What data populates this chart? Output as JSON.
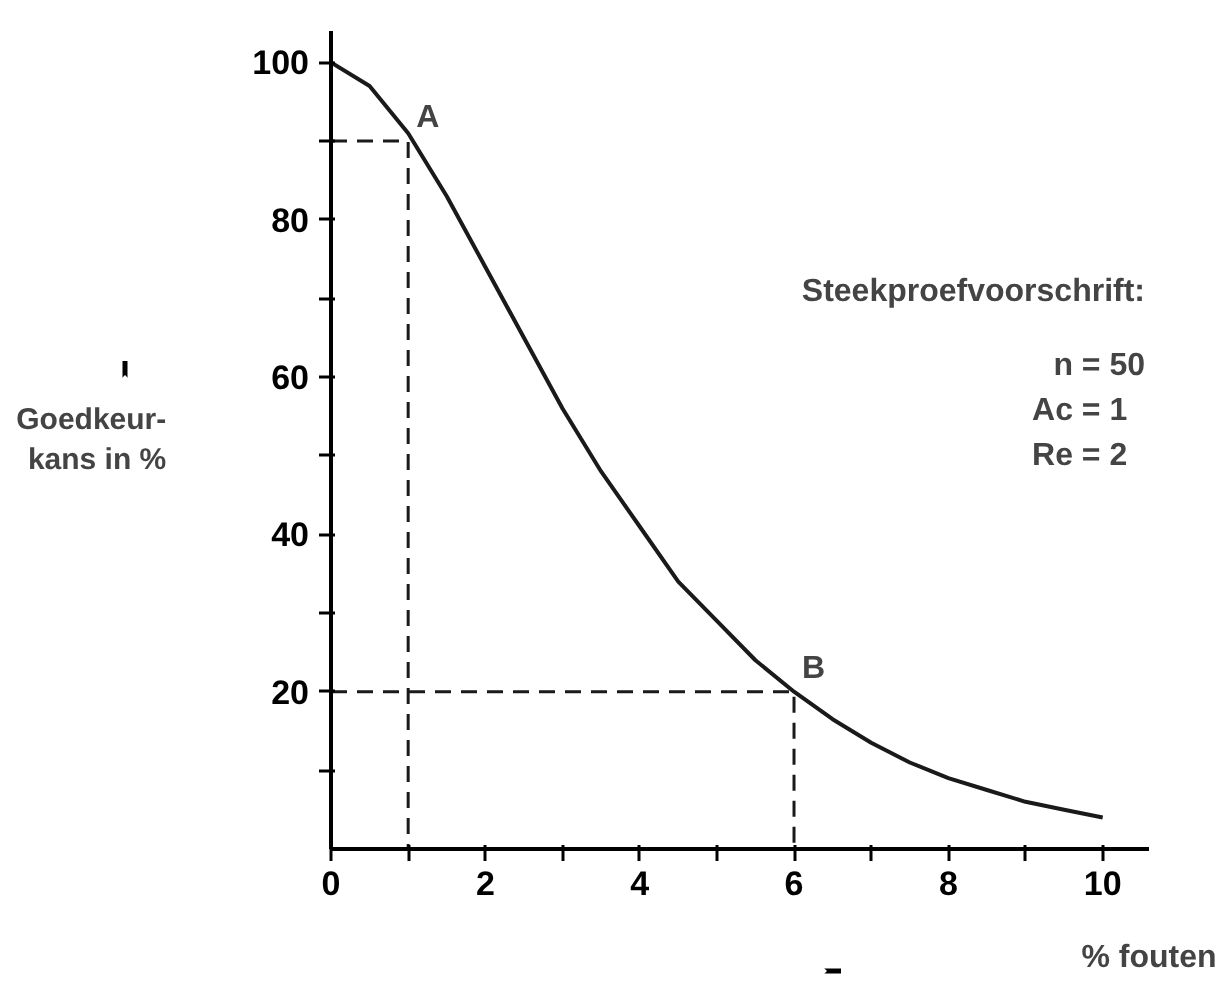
{
  "chart_data": {
    "type": "line",
    "xlabel": "% fouten",
    "ylabel": "Goedkeur-\nkans in %",
    "series": [
      {
        "color": "#1a1a1a",
        "x": [
          0,
          0.5,
          1,
          1.5,
          2,
          2.5,
          3,
          3.5,
          4,
          4.5,
          5,
          5.5,
          6,
          6.5,
          7,
          7.5,
          8,
          8.5,
          9,
          9.5,
          10
        ],
        "values": [
          100,
          97,
          91,
          83,
          74,
          65,
          56,
          48,
          41,
          34,
          29,
          24,
          20,
          16.5,
          13.5,
          11,
          9,
          7.5,
          6,
          5,
          4
        ]
      },
      {
        "color": "#1a1a1a",
        "line_style": "dashed",
        "x": [
          0,
          1,
          1
        ],
        "values": [
          90,
          90,
          0
        ]
      },
      {
        "color": "#1a1a1a",
        "line_style": "dashed",
        "x": [
          0,
          6,
          6
        ],
        "values": [
          20,
          20,
          0
        ]
      }
    ],
    "annotations": [
      {
        "text": "A",
        "x": 1,
        "y": 90
      },
      {
        "text": "B",
        "x": 6,
        "y": 20
      },
      "Steekproefvoorschrift:",
      "n = 50",
      "Ac =   1",
      "Re =   2"
    ],
    "xlim": [
      0,
      10.6
    ],
    "ylim": [
      0,
      104
    ],
    "xticks": [
      0,
      {
        "value": 1,
        "label": null
      },
      2,
      {
        "value": 3,
        "label": null
      },
      4,
      {
        "value": 5,
        "label": null
      },
      6,
      {
        "value": 7,
        "label": null
      },
      8,
      {
        "value": 9,
        "label": null
      },
      10
    ],
    "yticks": [
      {
        "value": 10,
        "label": null
      },
      20,
      {
        "value": 30,
        "label": null
      },
      40,
      {
        "value": 50,
        "label": null
      },
      60,
      {
        "value": 70,
        "label": null
      },
      80,
      {
        "value": 90,
        "label": null
      },
      100
    ],
    "grid": false,
    "marker": "none",
    "line_style": "solid"
  }
}
